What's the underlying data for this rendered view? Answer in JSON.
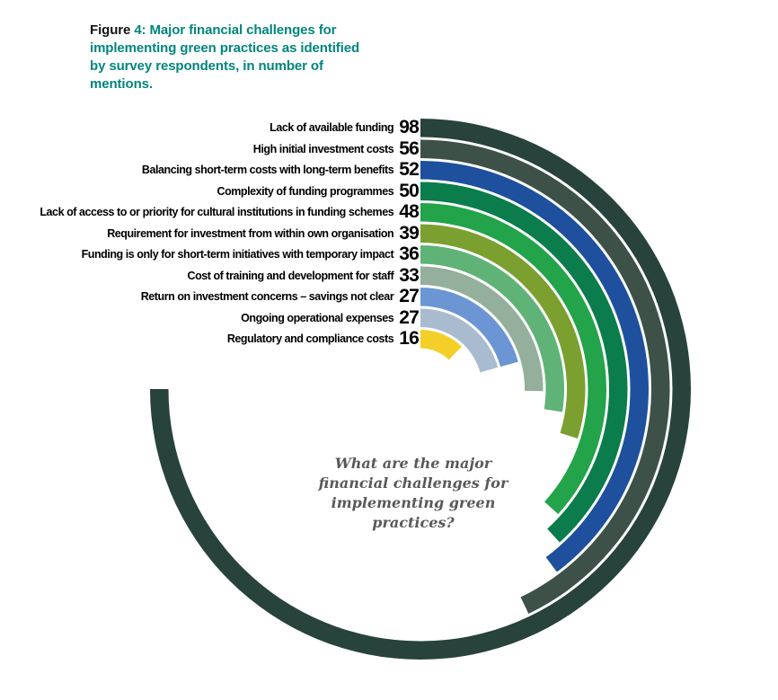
{
  "figure_title": {
    "prefix": "Figure",
    "rest": " 4: Major financial challenges for implementing green practices as identified by survey respondents, in number of mentions.",
    "accent_color": "#00857c"
  },
  "chart_data": {
    "type": "bar",
    "variant": "radial-circular-bars",
    "title": "Figure 4: Major financial challenges for implementing green practices as identified by survey respondents, in number of mentions.",
    "unit": "number of mentions",
    "categories": [
      "Lack of available funding",
      "High initial investment costs",
      "Balancing short-term costs with long-term benefits",
      "Complexity of funding programmes",
      "Lack of access to or priority for cultural institutions in funding schemes",
      "Requirement for investment from within own organisation",
      "Funding is only for short-term initiatives with temporary impact",
      "Cost of training and development for staff",
      "Return on investment concerns – savings not clear",
      "Ongoing operational expenses",
      "Regulatory and compliance costs"
    ],
    "values": [
      98,
      56,
      52,
      50,
      48,
      39,
      36,
      33,
      27,
      27,
      16
    ],
    "colors": [
      "#28423c",
      "#3d5148",
      "#1e509d",
      "#0b7c4c",
      "#23a34a",
      "#7ba030",
      "#5fb377",
      "#94af9b",
      "#6b96d3",
      "#a9bbcf",
      "#f3cf27"
    ],
    "scale": {
      "max_value": 98,
      "max_sweep_deg": 270
    },
    "start_position": "12-o-clock",
    "direction": "clockwise",
    "legend_position": "left-of-arcs",
    "grid": false,
    "center_annotation": "What are the major financial challenges for implementing green practices?"
  }
}
